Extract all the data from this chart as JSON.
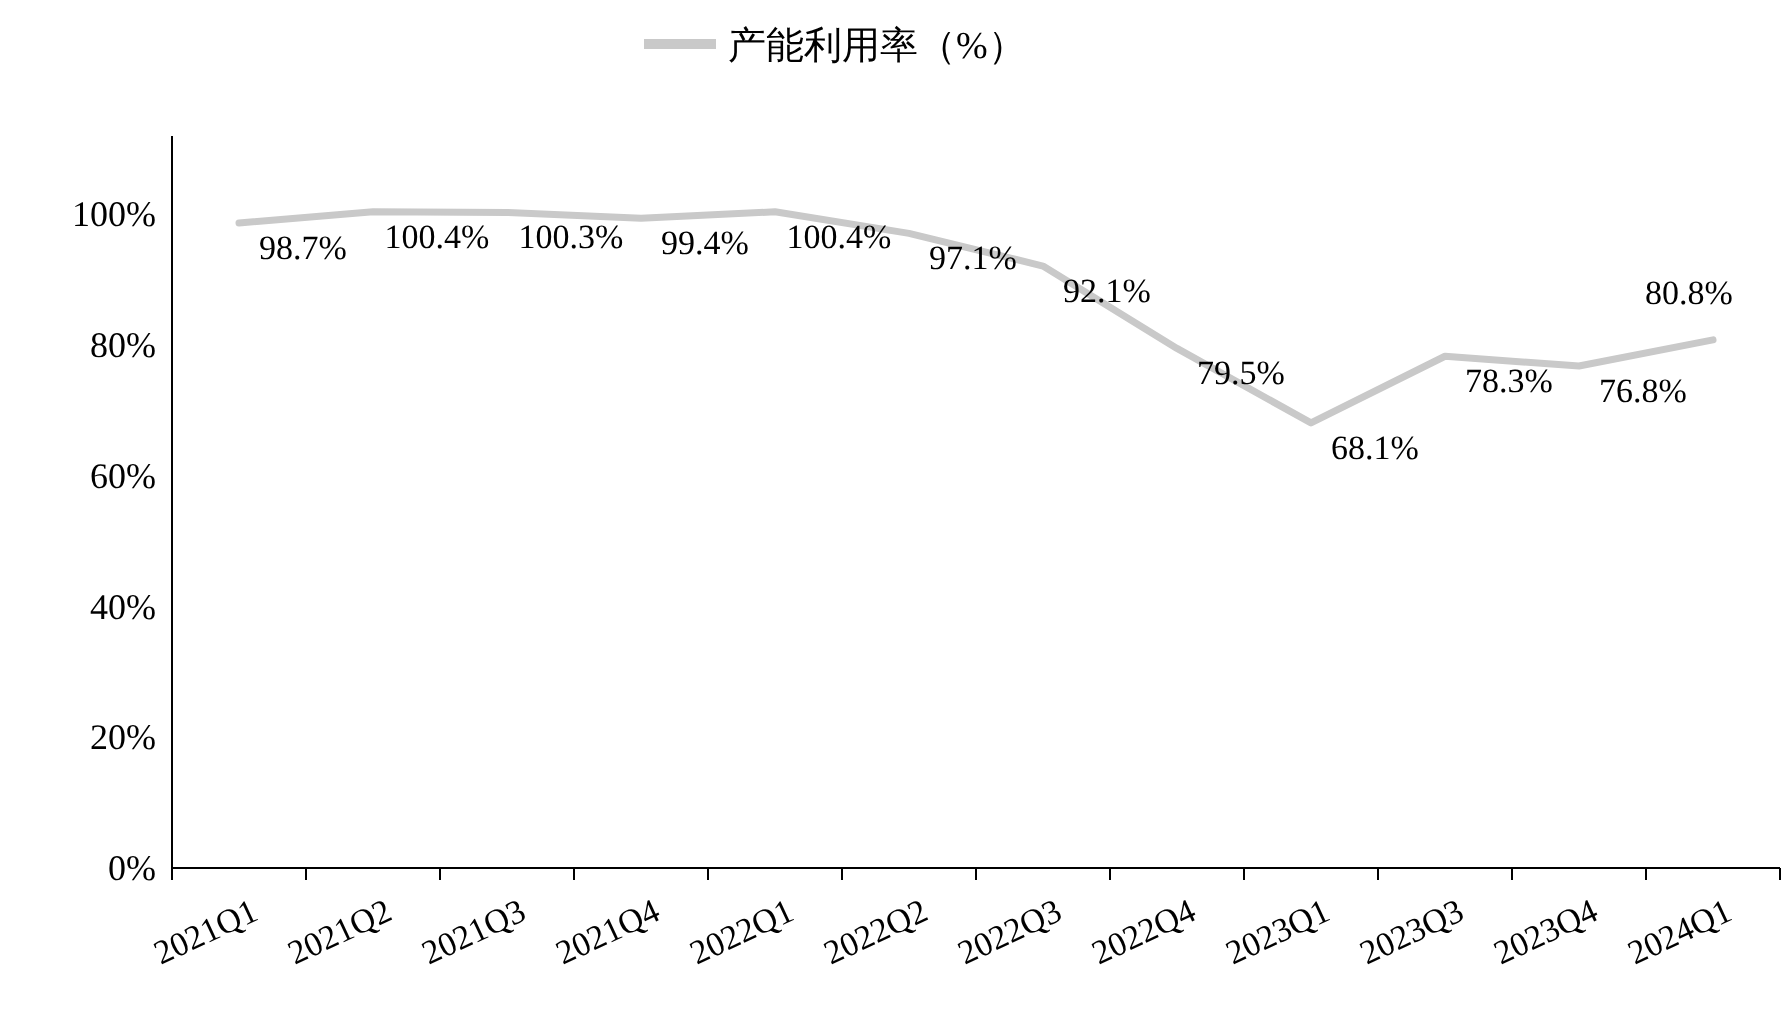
{
  "chart_data": {
    "type": "line",
    "categories": [
      "2021Q1",
      "2021Q2",
      "2021Q3",
      "2021Q4",
      "2022Q1",
      "2022Q2",
      "2022Q3",
      "2022Q4",
      "2023Q1",
      "2023Q3",
      "2023Q4",
      "2024Q1"
    ],
    "series": [
      {
        "name": "产能利用率（%）",
        "color": "#c9c9c9",
        "values": [
          98.7,
          100.4,
          100.3,
          99.4,
          100.4,
          97.1,
          92.1,
          79.5,
          68.1,
          78.3,
          76.8,
          80.8
        ]
      }
    ],
    "value_labels": [
      "98.7%",
      "100.4%",
      "100.3%",
      "99.4%",
      "100.4%",
      "97.1%",
      "92.1%",
      "79.5%",
      "68.1%",
      "78.3%",
      "76.8%",
      "80.8%"
    ],
    "ylim": [
      0,
      112
    ],
    "yticks": [
      {
        "value": 0,
        "label": "0%"
      },
      {
        "value": 20,
        "label": "20%"
      },
      {
        "value": 40,
        "label": "40%"
      },
      {
        "value": 60,
        "label": "60%"
      },
      {
        "value": 80,
        "label": "80%"
      },
      {
        "value": 100,
        "label": "100%"
      }
    ],
    "legend": "top",
    "grid": false,
    "marker": "none",
    "line_style": "solid"
  }
}
